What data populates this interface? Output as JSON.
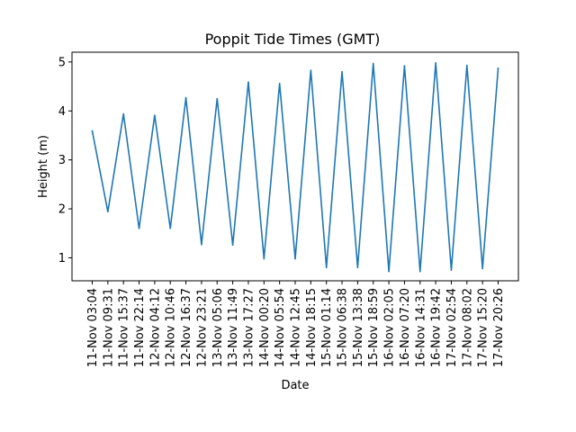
{
  "chart_data": {
    "type": "line",
    "title": "Poppit Tide Times (GMT)",
    "xlabel": "Date",
    "ylabel": "Height (m)",
    "ylim": [
      0.53,
      5.2
    ],
    "yticks": [
      "1",
      "2",
      "3",
      "4",
      "5"
    ],
    "categories": [
      "11-Nov 03:04",
      "11-Nov 09:31",
      "11-Nov 15:37",
      "11-Nov 22:14",
      "12-Nov 04:12",
      "12-Nov 10:46",
      "12-Nov 16:37",
      "12-Nov 23:21",
      "13-Nov 05:06",
      "13-Nov 11:49",
      "13-Nov 17:27",
      "14-Nov 00:20",
      "14-Nov 05:54",
      "14-Nov 12:45",
      "14-Nov 18:15",
      "15-Nov 01:14",
      "15-Nov 06:38",
      "15-Nov 13:38",
      "15-Nov 18:59",
      "16-Nov 02:05",
      "16-Nov 07:20",
      "16-Nov 14:31",
      "16-Nov 19:42",
      "17-Nov 02:54",
      "17-Nov 08:02",
      "17-Nov 15:20",
      "17-Nov 20:26"
    ],
    "series": [
      {
        "color": "#1f77b4",
        "values": [
          3.59,
          1.94,
          3.94,
          1.6,
          3.91,
          1.6,
          4.27,
          1.27,
          4.25,
          1.26,
          4.59,
          0.98,
          4.56,
          0.98,
          4.83,
          0.8,
          4.8,
          0.8,
          4.97,
          0.72,
          4.92,
          0.72,
          4.98,
          0.75,
          4.93,
          0.78,
          4.87
        ]
      }
    ],
    "grid": false
  }
}
